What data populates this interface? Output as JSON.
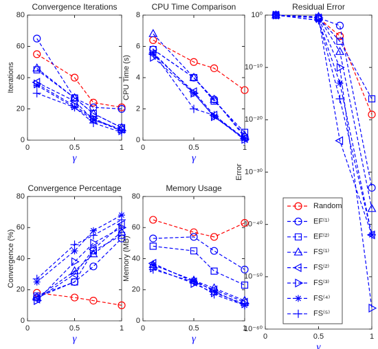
{
  "chart_data": [
    {
      "type": "line",
      "title": "Convergence Iterations",
      "xlabel": "γ",
      "ylabel": "Iterations",
      "x": [
        0.1,
        0.5,
        0.7,
        1
      ],
      "xlim": [
        0,
        1
      ],
      "xticks": [
        0,
        0.5,
        1
      ],
      "ylim": [
        0,
        80
      ],
      "yticks": [
        0,
        20,
        40,
        60,
        80
      ],
      "series": [
        {
          "color": "#ff0000",
          "marker": "o",
          "values": [
            55,
            40,
            24,
            21
          ]
        },
        {
          "color": "#0000ff",
          "marker": "o",
          "values": [
            65,
            27,
            21,
            20
          ]
        },
        {
          "color": "#0000ff",
          "marker": "s",
          "values": [
            45,
            27,
            17,
            8
          ]
        },
        {
          "color": "#0000ff",
          "marker": "^",
          "values": [
            46,
            27,
            17,
            8
          ]
        },
        {
          "color": "#0000ff",
          "marker": "<",
          "values": [
            37,
            25,
            13,
            7
          ]
        },
        {
          "color": "#0000ff",
          "marker": ">",
          "values": [
            36,
            22,
            14,
            6
          ]
        },
        {
          "color": "#0000ff",
          "marker": "*",
          "values": [
            35,
            21,
            13,
            6
          ]
        },
        {
          "color": "#0000ff",
          "marker": "+",
          "values": [
            30,
            21,
            11,
            5
          ]
        }
      ]
    },
    {
      "type": "line",
      "title": "CPU Time Comparison",
      "xlabel": "γ",
      "ylabel": "CPU Time (s)",
      "x": [
        0.1,
        0.5,
        0.7,
        1
      ],
      "xlim": [
        0,
        1
      ],
      "xticks": [
        0,
        0.5,
        1
      ],
      "ylim": [
        0,
        8
      ],
      "yticks": [
        0,
        2,
        4,
        6,
        8
      ],
      "series": [
        {
          "color": "#ff0000",
          "marker": "o",
          "values": [
            6.4,
            5.0,
            4.6,
            3.2
          ]
        },
        {
          "color": "#0000ff",
          "marker": "o",
          "values": [
            5.8,
            4.0,
            2.6,
            0.2
          ]
        },
        {
          "color": "#0000ff",
          "marker": "s",
          "values": [
            5.8,
            4.0,
            2.5,
            0.5
          ]
        },
        {
          "color": "#0000ff",
          "marker": "^",
          "values": [
            6.8,
            4.0,
            2.6,
            0.3
          ]
        },
        {
          "color": "#0000ff",
          "marker": "<",
          "values": [
            5.5,
            3.1,
            1.6,
            0.1
          ]
        },
        {
          "color": "#0000ff",
          "marker": ">",
          "values": [
            5.3,
            3.0,
            1.5,
            0.05
          ]
        },
        {
          "color": "#0000ff",
          "marker": "*",
          "values": [
            5.6,
            3.0,
            1.5,
            0.1
          ]
        },
        {
          "color": "#0000ff",
          "marker": "+",
          "values": [
            5.6,
            2.0,
            1.6,
            0.0
          ]
        }
      ]
    },
    {
      "type": "line",
      "title": "Residual Error",
      "xlabel": "γ",
      "ylabel": "Error",
      "yscale": "log",
      "legend": "lower left",
      "x": [
        0.1,
        0.5,
        0.7,
        1
      ],
      "xlim": [
        0,
        1
      ],
      "xticks": [
        0,
        0.5,
        1
      ],
      "ylim": [
        1e-60,
        1
      ],
      "yticks": [
        {
          "value": 1,
          "label": "10⁰"
        },
        {
          "value": 1e-10,
          "label": "10⁻¹⁰"
        },
        {
          "value": 1e-20,
          "label": "10⁻²⁰"
        },
        {
          "value": 1e-30,
          "label": "10⁻³⁰"
        },
        {
          "value": 1e-40,
          "label": "10⁻⁴⁰"
        },
        {
          "value": 1e-50,
          "label": "10⁻⁵⁰"
        },
        {
          "value": 1e-60,
          "label": "10⁻⁶⁰"
        }
      ],
      "series": [
        {
          "name": "Random",
          "color": "#ff0000",
          "marker": "o",
          "values": [
            1,
            0.3,
            0.0001,
            1e-19
          ]
        },
        {
          "name": "EF⁽¹⁾",
          "color": "#0000ff",
          "marker": "o",
          "values": [
            1,
            0.3,
            0.01,
            1e-33
          ]
        },
        {
          "name": "EF⁽²⁾",
          "color": "#0000ff",
          "marker": "s",
          "values": [
            1,
            0.3,
            1e-05,
            1e-16
          ]
        },
        {
          "name": "FS⁽¹⁾",
          "color": "#0000ff",
          "marker": "^",
          "values": [
            1,
            0.5,
            1e-07,
            1e-37
          ]
        },
        {
          "name": "FS⁽²⁾",
          "color": "#0000ff",
          "marker": "<",
          "values": [
            1,
            0.3,
            1e-24,
            1e-42
          ]
        },
        {
          "name": "FS⁽³⁾",
          "color": "#0000ff",
          "marker": ">",
          "values": [
            1,
            0.3,
            1e-10,
            1e-56
          ]
        },
        {
          "name": "FS⁽⁴⁾",
          "color": "#0000ff",
          "marker": "*",
          "values": [
            1,
            0.1,
            1e-13,
            1e-42
          ]
        },
        {
          "name": "FS⁽⁵⁾",
          "color": "#0000ff",
          "marker": "+",
          "values": [
            1,
            0.1,
            1e-16,
            1e-42
          ]
        }
      ]
    },
    {
      "type": "line",
      "title": "Convergence Percentage",
      "xlabel": "γ",
      "ylabel": "Convergence (%)",
      "x": [
        0.1,
        0.5,
        0.7,
        1
      ],
      "xlim": [
        0,
        1
      ],
      "xticks": [
        0,
        0.5,
        1
      ],
      "ylim": [
        0,
        80
      ],
      "yticks": [
        0,
        20,
        40,
        60,
        80
      ],
      "series": [
        {
          "color": "#ff0000",
          "marker": "o",
          "values": [
            18,
            15,
            13,
            10
          ]
        },
        {
          "color": "#0000ff",
          "marker": "o",
          "values": [
            15,
            25,
            35,
            53
          ]
        },
        {
          "color": "#0000ff",
          "marker": "s",
          "values": [
            16,
            25,
            45,
            55
          ]
        },
        {
          "color": "#0000ff",
          "marker": "^",
          "values": [
            15,
            32,
            43,
            57
          ]
        },
        {
          "color": "#0000ff",
          "marker": "<",
          "values": [
            14,
            30,
            46,
            62
          ]
        },
        {
          "color": "#0000ff",
          "marker": ">",
          "values": [
            13,
            38,
            50,
            60
          ]
        },
        {
          "color": "#0000ff",
          "marker": "*",
          "values": [
            25,
            45,
            58,
            68
          ]
        },
        {
          "color": "#0000ff",
          "marker": "+",
          "values": [
            27,
            49,
            55,
            65
          ]
        }
      ]
    },
    {
      "type": "line",
      "title": "Memory Usage",
      "xlabel": "γ",
      "ylabel": "Memory (MB)",
      "x": [
        0.1,
        0.5,
        0.7,
        1
      ],
      "xlim": [
        0,
        1
      ],
      "xticks": [
        0,
        0.5,
        1
      ],
      "ylim": [
        0,
        80
      ],
      "yticks": [
        0,
        20,
        40,
        60,
        80
      ],
      "series": [
        {
          "color": "#ff0000",
          "marker": "o",
          "values": [
            65,
            57,
            54,
            63
          ]
        },
        {
          "color": "#0000ff",
          "marker": "o",
          "values": [
            53,
            54,
            45,
            33
          ]
        },
        {
          "color": "#0000ff",
          "marker": "s",
          "values": [
            48,
            45,
            32,
            23
          ]
        },
        {
          "color": "#0000ff",
          "marker": "^",
          "values": [
            36,
            26,
            21,
            13
          ]
        },
        {
          "color": "#0000ff",
          "marker": "<",
          "values": [
            37,
            25,
            20,
            12
          ]
        },
        {
          "color": "#0000ff",
          "marker": ">",
          "values": [
            34,
            24,
            18,
            11
          ]
        },
        {
          "color": "#0000ff",
          "marker": "*",
          "values": [
            36,
            26,
            19,
            10
          ]
        },
        {
          "color": "#0000ff",
          "marker": "+",
          "values": [
            33,
            25,
            17,
            10
          ]
        }
      ]
    }
  ]
}
